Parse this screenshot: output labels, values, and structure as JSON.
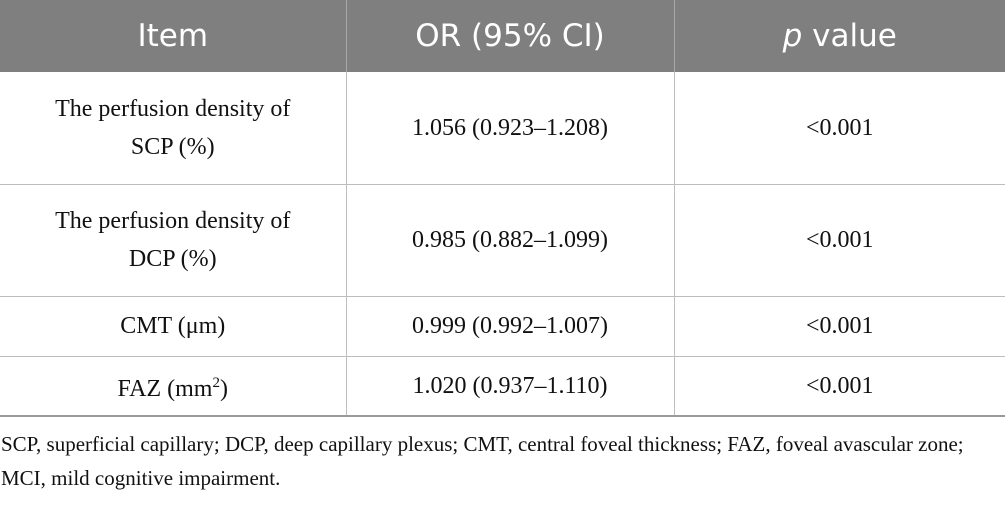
{
  "table": {
    "header": {
      "item": "Item",
      "or": "OR (95% CI)",
      "p_italic": "p",
      "p_rest": " value"
    },
    "rows": [
      {
        "item_line1": "The perfusion density of",
        "item_line2": "SCP (%)",
        "or": "1.056 (0.923–1.208)",
        "p": "<0.001"
      },
      {
        "item_line1": "The perfusion density of",
        "item_line2": "DCP (%)",
        "or": "0.985 (0.882–1.099)",
        "p": "<0.001"
      },
      {
        "item": "CMT (μm)",
        "or": "0.999 (0.992–1.007)",
        "p": "<0.001"
      },
      {
        "item_base": "FAZ (mm",
        "item_sup": "2",
        "item_close": ")",
        "or": "1.020 (0.937–1.110)",
        "p": "<0.001"
      }
    ]
  },
  "footnote": "SCP, superficial capillary; DCP, deep capillary plexus; CMT, central foveal thickness; FAZ, foveal avascular zone; MCI, mild cognitive impairment."
}
